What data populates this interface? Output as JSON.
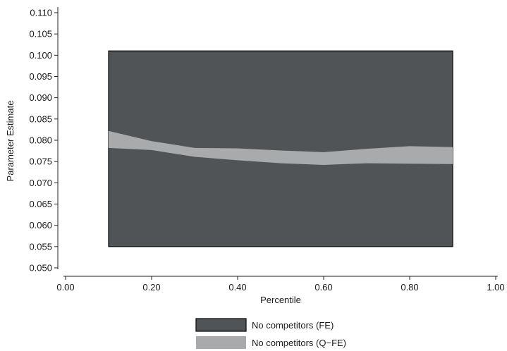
{
  "chart_data": {
    "type": "area",
    "xlabel": "Percentile",
    "ylabel": "Parameter Estimate",
    "xlim": [
      0.0,
      1.0
    ],
    "ylim": [
      0.05,
      0.11
    ],
    "x_ticks": [
      0.0,
      0.2,
      0.4,
      0.6,
      0.8,
      1.0
    ],
    "x_tick_labels": [
      "0.00",
      "0.20",
      "0.40",
      "0.60",
      "0.80",
      "1.00"
    ],
    "y_ticks": [
      0.05,
      0.055,
      0.06,
      0.065,
      0.07,
      0.075,
      0.08,
      0.085,
      0.09,
      0.095,
      0.1,
      0.105,
      0.11
    ],
    "y_tick_labels": [
      "0.050",
      "0.055",
      "0.060",
      "0.065",
      "0.070",
      "0.075",
      "0.080",
      "0.085",
      "0.090",
      "0.095",
      "0.100",
      "0.105",
      "0.110"
    ],
    "grid": false,
    "legend_position": "bottom",
    "series": [
      {
        "name": "No competitors (FE)",
        "color": "#515456",
        "x": [
          0.1,
          0.9
        ],
        "lower": [
          0.055,
          0.055
        ],
        "upper": [
          0.101,
          0.101
        ]
      },
      {
        "name": "No competitors (Q−FE)",
        "color": "#a8aaab",
        "x": [
          0.1,
          0.2,
          0.3,
          0.4,
          0.5,
          0.6,
          0.7,
          0.8,
          0.9
        ],
        "lower": [
          0.0782,
          0.0777,
          0.0761,
          0.0753,
          0.0746,
          0.0742,
          0.0746,
          0.0745,
          0.0744
        ],
        "upper": [
          0.0822,
          0.0798,
          0.0782,
          0.0781,
          0.0776,
          0.0772,
          0.078,
          0.0786,
          0.0784
        ]
      }
    ]
  }
}
